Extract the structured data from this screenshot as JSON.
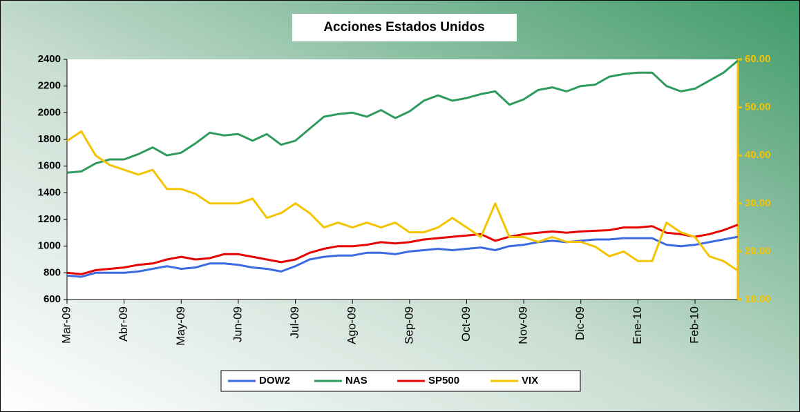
{
  "chart_data": {
    "type": "line",
    "title": "Acciones Estados Unidos",
    "categories": [
      "Mar-09",
      null,
      null,
      null,
      "Abr-09",
      null,
      null,
      null,
      "May-09",
      null,
      null,
      null,
      "Jun-09",
      null,
      null,
      null,
      "Jul-09",
      null,
      null,
      null,
      "Ago-09",
      null,
      null,
      null,
      "Sep-09",
      null,
      null,
      null,
      "Oct-09",
      null,
      null,
      null,
      "Nov-09",
      null,
      null,
      null,
      "Dic-09",
      null,
      null,
      null,
      "Ene-10",
      null,
      null,
      null,
      "Feb-10",
      null,
      null,
      null
    ],
    "ylim": [
      600,
      2400
    ],
    "yticks": [
      600,
      800,
      1000,
      1200,
      1400,
      1600,
      1800,
      2000,
      2200,
      2400
    ],
    "y2lim": [
      10,
      60
    ],
    "y2ticks": [
      {
        "value": 10,
        "label": "10.00"
      },
      {
        "value": 20,
        "label": "20.00"
      },
      {
        "value": 30,
        "label": "30.00"
      },
      {
        "value": 40,
        "label": "40.00"
      },
      {
        "value": 50,
        "label": "50.00"
      },
      {
        "value": 60,
        "label": "60.00"
      }
    ],
    "y2color": "#f5c400",
    "legend": "bottom",
    "series": [
      {
        "name": "DOW2",
        "color": "#3c6ae0",
        "values": [
          780,
          770,
          800,
          800,
          800,
          810,
          830,
          850,
          830,
          840,
          870,
          870,
          860,
          840,
          830,
          810,
          850,
          900,
          920,
          930,
          930,
          950,
          950,
          940,
          960,
          970,
          980,
          970,
          980,
          990,
          970,
          1000,
          1010,
          1030,
          1040,
          1030,
          1040,
          1050,
          1050,
          1060,
          1060,
          1060,
          1010,
          1000,
          1010,
          1030,
          1050,
          1070
        ]
      },
      {
        "name": "NAS",
        "color": "#2e9a5e",
        "values": [
          1550,
          1560,
          1620,
          1650,
          1650,
          1690,
          1740,
          1680,
          1700,
          1770,
          1850,
          1830,
          1840,
          1790,
          1840,
          1760,
          1790,
          1880,
          1970,
          1990,
          2000,
          1970,
          2020,
          1960,
          2010,
          2090,
          2130,
          2090,
          2110,
          2140,
          2160,
          2060,
          2100,
          2170,
          2190,
          2160,
          2200,
          2210,
          2270,
          2290,
          2300,
          2300,
          2200,
          2160,
          2180,
          2240,
          2300,
          2390
        ]
      },
      {
        "name": "SP500",
        "color": "#e60000",
        "values": [
          800,
          790,
          820,
          830,
          840,
          860,
          870,
          900,
          920,
          900,
          910,
          940,
          940,
          920,
          900,
          880,
          900,
          950,
          980,
          1000,
          1000,
          1010,
          1030,
          1020,
          1030,
          1050,
          1060,
          1070,
          1080,
          1090,
          1040,
          1070,
          1090,
          1100,
          1110,
          1100,
          1110,
          1115,
          1120,
          1140,
          1140,
          1150,
          1100,
          1090,
          1070,
          1090,
          1120,
          1160
        ]
      },
      {
        "name": "VIX",
        "color": "#f5c400",
        "axis": "y2",
        "values": [
          43,
          45,
          40,
          38,
          37,
          36,
          37,
          33,
          33,
          32,
          30,
          30,
          30,
          31,
          27,
          28,
          30,
          28,
          25,
          26,
          25,
          26,
          25,
          26,
          24,
          24,
          25,
          27,
          25,
          23,
          30,
          23,
          23,
          22,
          23,
          22,
          22,
          21,
          19,
          20,
          18,
          18,
          26,
          24,
          23,
          19,
          18,
          16
        ]
      }
    ]
  }
}
